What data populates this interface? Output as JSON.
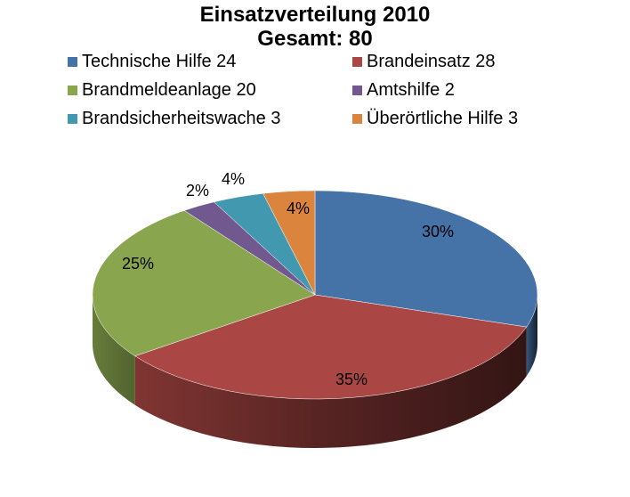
{
  "chart_data": {
    "type": "pie",
    "title": "Einsatzverteilung 2010",
    "subtitle": "Gesamt: 80",
    "legend_position": "top",
    "slices": [
      {
        "label": "Technische Hilfe 24",
        "name": "Technische Hilfe",
        "value": 24,
        "percent_label": "30%",
        "color": "#4572a7"
      },
      {
        "label": "Brandeinsatz 28",
        "name": "Brandeinsatz",
        "value": 28,
        "percent_label": "35%",
        "color": "#aa4643"
      },
      {
        "label": "Brandmeldeanlage 20",
        "name": "Brandmeldeanlage",
        "value": 20,
        "percent_label": "25%",
        "color": "#89a54e"
      },
      {
        "label": "Amtshilfe 2",
        "name": "Amtshilfe",
        "value": 2,
        "percent_label": "2%",
        "color": "#71588f"
      },
      {
        "label": "Brandsicherheitswache 3",
        "name": "Brandsicherheitswache",
        "value": 3,
        "percent_label": "4%",
        "color": "#4198af"
      },
      {
        "label": "Überörtliche Hilfe 3",
        "name": "Überörtliche Hilfe",
        "value": 3,
        "percent_label": "4%",
        "color": "#db843d"
      }
    ]
  }
}
